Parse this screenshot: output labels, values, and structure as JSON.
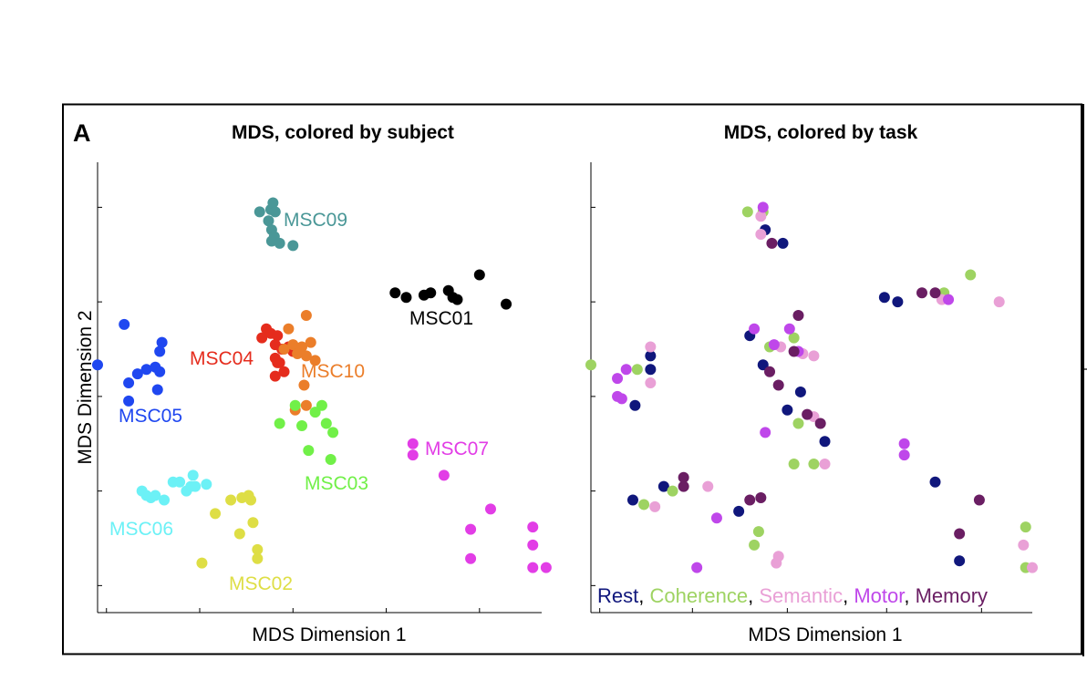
{
  "panel_letter": "A",
  "colors": {
    "MSC01": "#000000",
    "MSC02": "#dede45",
    "MSC03": "#71f048",
    "MSC04": "#e52c1d",
    "MSC05": "#1f47f0",
    "MSC06": "#6cf1f6",
    "MSC07": "#e23de6",
    "MSC09": "#4a9797",
    "MSC10": "#eb7e2a",
    "Rest": "#10177c",
    "Coherence": "#9ed362",
    "Semantic": "#e9a0d6",
    "Motor": "#bf47ea",
    "Memory": "#6a1e63"
  },
  "chart_data": [
    {
      "type": "scatter",
      "title": "MDS, colored by subject",
      "xlabel": "MDS Dimension 1",
      "ylabel": "MDS Dimension 2",
      "xlim": [
        0,
        100
      ],
      "ylim": [
        0,
        100
      ],
      "x_tick_values": [
        2,
        23,
        44,
        65,
        86
      ],
      "y_tick_values": [
        6,
        27,
        48,
        69,
        90
      ],
      "grid": false,
      "series": [
        {
          "name": "MSC09",
          "points": [
            [
              36.5,
              89
            ],
            [
              39,
              89.5
            ],
            [
              39.5,
              91
            ],
            [
              40,
              89
            ],
            [
              38.5,
              87
            ],
            [
              39.2,
              85
            ],
            [
              39.8,
              83.5
            ],
            [
              39.2,
              82.5
            ],
            [
              41,
              82
            ],
            [
              44,
              81.5
            ]
          ]
        },
        {
          "name": "MSC01",
          "points": [
            [
              67,
              71
            ],
            [
              69.5,
              70
            ],
            [
              73.5,
              70.5
            ],
            [
              75,
              71
            ],
            [
              79,
              71.5
            ],
            [
              80,
              70
            ],
            [
              81,
              69.5
            ],
            [
              86,
              75
            ],
            [
              92,
              68.5
            ]
          ]
        },
        {
          "name": "MSC04",
          "points": [
            [
              38,
              63
            ],
            [
              37,
              61
            ],
            [
              39,
              62
            ],
            [
              40.5,
              61.5
            ],
            [
              40,
              59.5
            ],
            [
              41.5,
              58.5
            ],
            [
              43,
              59
            ],
            [
              44,
              58
            ],
            [
              40,
              56.5
            ],
            [
              41,
              55.5
            ],
            [
              42,
              53.5
            ],
            [
              40,
              52.5
            ],
            [
              40.5,
              55.5
            ]
          ]
        },
        {
          "name": "MSC10",
          "points": [
            [
              47,
              66
            ],
            [
              43,
              63
            ],
            [
              42,
              58.5
            ],
            [
              44,
              59.5
            ],
            [
              46,
              59
            ],
            [
              47,
              57
            ],
            [
              48,
              60
            ],
            [
              49,
              56
            ],
            [
              45,
              57.5
            ],
            [
              46.5,
              50.5
            ],
            [
              47,
              46
            ],
            [
              44.5,
              45
            ]
          ]
        },
        {
          "name": "MSC05",
          "points": [
            [
              0,
              55
            ],
            [
              6,
              64
            ],
            [
              14.5,
              60
            ],
            [
              14,
              58
            ],
            [
              9,
              53
            ],
            [
              11,
              54
            ],
            [
              13,
              54.5
            ],
            [
              14,
              53.5
            ],
            [
              7,
              51
            ],
            [
              13.5,
              49.5
            ],
            [
              7,
              47
            ]
          ]
        },
        {
          "name": "MSC03",
          "points": [
            [
              44.5,
              46
            ],
            [
              50.5,
              46
            ],
            [
              49,
              44.5
            ],
            [
              46,
              41.5
            ],
            [
              41,
              42
            ],
            [
              51.5,
              42
            ],
            [
              53,
              40
            ],
            [
              47.5,
              36
            ],
            [
              52.5,
              34
            ]
          ]
        },
        {
          "name": "MSC07",
          "points": [
            [
              71,
              37.5
            ],
            [
              71,
              35
            ],
            [
              78,
              30.5
            ],
            [
              88.5,
              23
            ],
            [
              84,
              18.5
            ],
            [
              98,
              19
            ],
            [
              98,
              15
            ],
            [
              84,
              12
            ],
            [
              98,
              10
            ],
            [
              101,
              10
            ]
          ]
        },
        {
          "name": "MSC06",
          "points": [
            [
              10,
              27
            ],
            [
              11,
              26
            ],
            [
              12,
              25.5
            ],
            [
              13,
              26
            ],
            [
              15,
              25
            ],
            [
              17,
              29
            ],
            [
              18.5,
              29
            ],
            [
              21,
              28
            ],
            [
              21.5,
              30.5
            ],
            [
              22,
              28
            ],
            [
              20,
              27
            ],
            [
              24.5,
              28.5
            ]
          ]
        },
        {
          "name": "MSC02",
          "points": [
            [
              30,
              25
            ],
            [
              32.5,
              25.5
            ],
            [
              34,
              26
            ],
            [
              34.5,
              25
            ],
            [
              26.5,
              22
            ],
            [
              35,
              20
            ],
            [
              32,
              17.5
            ],
            [
              36,
              14
            ],
            [
              36,
              12
            ],
            [
              23.5,
              11
            ]
          ]
        }
      ],
      "labels": [
        {
          "text": "MSC09",
          "series": "MSC09"
        },
        {
          "text": "MSC01",
          "series": "MSC01"
        },
        {
          "text": "MSC04",
          "series": "MSC04"
        },
        {
          "text": "MSC10",
          "series": "MSC10"
        },
        {
          "text": "MSC05",
          "series": "MSC05"
        },
        {
          "text": "MSC07",
          "series": "MSC07"
        },
        {
          "text": "MSC03",
          "series": "MSC03"
        },
        {
          "text": "MSC06",
          "series": "MSC06"
        },
        {
          "text": "MSC02",
          "series": "MSC02"
        }
      ]
    },
    {
      "type": "scatter",
      "title": "MDS, colored by task",
      "xlabel": "MDS Dimension 1",
      "ylabel": "",
      "xlim": [
        0,
        100
      ],
      "ylim": [
        0,
        100
      ],
      "x_tick_values": [
        2,
        23,
        44.5,
        67,
        88.5
      ],
      "y_tick_values": [
        6,
        27,
        48,
        69,
        90
      ],
      "grid": false,
      "legend": {
        "placement": "bottom-right",
        "items": [
          "Rest",
          "Coherence",
          "Semantic",
          "Motor",
          "Memory"
        ]
      },
      "series": [
        {
          "name": "Rest",
          "points": [
            [
              39.5,
              85
            ],
            [
              43.5,
              82
            ],
            [
              66.5,
              70
            ],
            [
              69.5,
              69
            ],
            [
              36,
              61.5
            ],
            [
              39,
              55
            ],
            [
              47.5,
              49
            ],
            [
              44.5,
              45
            ],
            [
              53,
              38
            ],
            [
              13.5,
              57
            ],
            [
              13.5,
              54
            ],
            [
              10,
              46
            ],
            [
              16.5,
              28
            ],
            [
              9.5,
              25
            ],
            [
              33.5,
              22.5
            ],
            [
              78,
              29
            ],
            [
              83.5,
              11.5
            ]
          ]
        },
        {
          "name": "Coherence",
          "points": [
            [
              35.5,
              89
            ],
            [
              39,
              89
            ],
            [
              80,
              71
            ],
            [
              86,
              75
            ],
            [
              40.5,
              59
            ],
            [
              46,
              61
            ],
            [
              0,
              55
            ],
            [
              10.5,
              54
            ],
            [
              47,
              42
            ],
            [
              50.5,
              33
            ],
            [
              46,
              33
            ],
            [
              18.5,
              27
            ],
            [
              12,
              24
            ],
            [
              38,
              18
            ],
            [
              37,
              15
            ],
            [
              98.5,
              19
            ],
            [
              98.5,
              10
            ]
          ]
        },
        {
          "name": "Semantic",
          "points": [
            [
              38.5,
              88
            ],
            [
              38.5,
              84
            ],
            [
              79.5,
              69.5
            ],
            [
              92.5,
              69
            ],
            [
              43,
              59
            ],
            [
              48,
              57.5
            ],
            [
              50.5,
              57
            ],
            [
              50.5,
              43.5
            ],
            [
              13.5,
              59
            ],
            [
              13.5,
              51
            ],
            [
              26.5,
              28
            ],
            [
              14.5,
              23.5
            ],
            [
              53,
              33
            ],
            [
              42.5,
              12.5
            ],
            [
              42,
              11
            ],
            [
              98,
              15
            ],
            [
              100,
              10
            ]
          ]
        },
        {
          "name": "Motor",
          "points": [
            [
              39,
              90
            ],
            [
              81,
              69.5
            ],
            [
              37,
              63
            ],
            [
              41.5,
              59.5
            ],
            [
              45,
              63
            ],
            [
              47,
              58
            ],
            [
              8,
              54
            ],
            [
              6,
              52
            ],
            [
              6,
              48
            ],
            [
              7,
              47.5
            ],
            [
              39.5,
              40
            ],
            [
              71,
              37.5
            ],
            [
              71,
              35
            ],
            [
              28.5,
              21
            ],
            [
              24,
              10
            ]
          ]
        },
        {
          "name": "Memory",
          "points": [
            [
              41,
              82
            ],
            [
              75,
              71
            ],
            [
              78,
              71
            ],
            [
              47,
              66
            ],
            [
              46,
              58
            ],
            [
              40.5,
              53.5
            ],
            [
              42.5,
              50.5
            ],
            [
              49,
              44
            ],
            [
              52,
              42
            ],
            [
              21,
              30
            ],
            [
              21,
              28
            ],
            [
              36,
              25
            ],
            [
              38.5,
              25.5
            ],
            [
              88,
              25
            ],
            [
              83.5,
              17.5
            ]
          ]
        }
      ]
    }
  ]
}
